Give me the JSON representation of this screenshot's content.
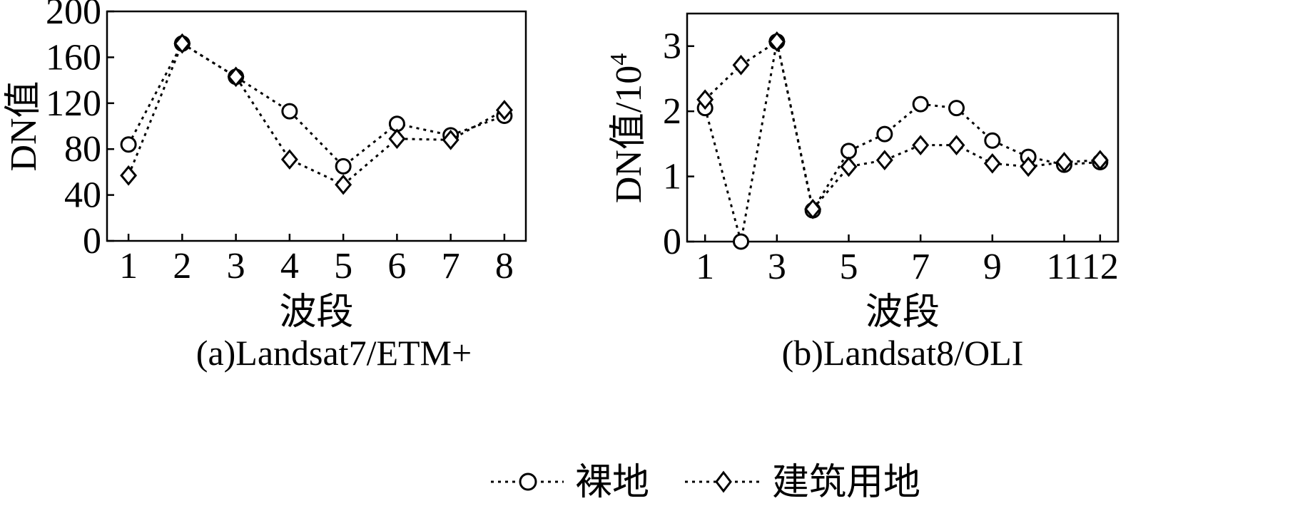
{
  "legend": {
    "items": [
      {
        "label": "裸地",
        "marker": "circle"
      },
      {
        "label": "建筑用地",
        "marker": "diamond"
      }
    ]
  },
  "chart_data": [
    {
      "type": "line",
      "caption": "(a)Landsat7/ETM+",
      "xlabel": "波段",
      "ylabel": "DN值",
      "ylabel_superscript": "",
      "xlim": [
        0.6,
        8.4
      ],
      "ylim": [
        0,
        200
      ],
      "yticks": [
        0,
        40,
        80,
        120,
        160,
        200
      ],
      "xticks": [
        1,
        2,
        3,
        4,
        5,
        6,
        7,
        8
      ],
      "grid": false,
      "series": [
        {
          "name": "裸地",
          "marker": "circle",
          "x": [
            1,
            2,
            3,
            4,
            5,
            6,
            7,
            8
          ],
          "y": [
            84,
            172,
            143,
            113,
            65,
            102,
            92,
            109
          ]
        },
        {
          "name": "建筑用地",
          "marker": "diamond",
          "x": [
            1,
            2,
            3,
            4,
            5,
            6,
            7,
            8
          ],
          "y": [
            57,
            172,
            143,
            71,
            49,
            89,
            88,
            114
          ]
        }
      ]
    },
    {
      "type": "line",
      "caption": "(b)Landsat8/OLI",
      "xlabel": "波段",
      "ylabel": "DN值/10",
      "ylabel_superscript": "4",
      "xlim": [
        0.5,
        12.5
      ],
      "ylim": [
        0,
        3.5
      ],
      "yticks": [
        0,
        1,
        2,
        3
      ],
      "xticks": [
        1,
        3,
        5,
        7,
        9,
        11,
        12
      ],
      "grid": false,
      "series": [
        {
          "name": "裸地",
          "marker": "circle",
          "x": [
            1,
            2,
            3,
            4,
            5,
            6,
            7,
            8,
            9,
            10,
            11,
            12
          ],
          "y": [
            2.05,
            0.0,
            3.07,
            0.48,
            1.39,
            1.65,
            2.11,
            2.05,
            1.55,
            1.3,
            1.18,
            1.22
          ]
        },
        {
          "name": "建筑用地",
          "marker": "diamond",
          "x": [
            1,
            2,
            3,
            4,
            5,
            6,
            7,
            8,
            9,
            10,
            11,
            12
          ],
          "y": [
            2.18,
            2.71,
            3.07,
            0.5,
            1.15,
            1.25,
            1.48,
            1.48,
            1.2,
            1.15,
            1.22,
            1.25
          ]
        }
      ]
    }
  ]
}
